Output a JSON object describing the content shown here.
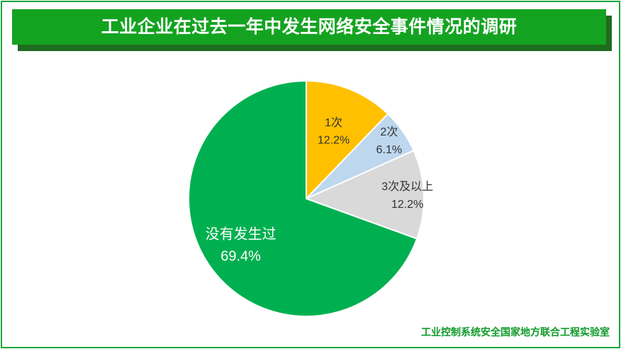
{
  "title": "工业企业在过去一年中发生网络安全事件情况的调研",
  "footer": "工业控制系统安全国家地方联合工程实验室",
  "colors": {
    "frame": "#1aa33a",
    "title_bg": "#14a321",
    "title_shadow": "#1f6b1f",
    "footer_text": "#0f9a2a"
  },
  "chart_data": {
    "type": "pie",
    "title": "",
    "start_angle_deg": 0,
    "direction": "clockwise",
    "slices": [
      {
        "label": "1次",
        "value": 12.2,
        "value_label": "12.2%",
        "color": "#ffc000",
        "label_color": "#333333"
      },
      {
        "label": "2次",
        "value": 6.1,
        "value_label": "6.1%",
        "color": "#bdd7ee",
        "label_color": "#333333"
      },
      {
        "label": "3次及以上",
        "value": 12.2,
        "value_label": "12.2%",
        "color": "#d9d9d9",
        "label_color": "#333333"
      },
      {
        "label": "没有发生过",
        "value": 69.4,
        "value_label": "69.4%",
        "color": "#00b050",
        "label_color": "#ffffff"
      }
    ]
  }
}
